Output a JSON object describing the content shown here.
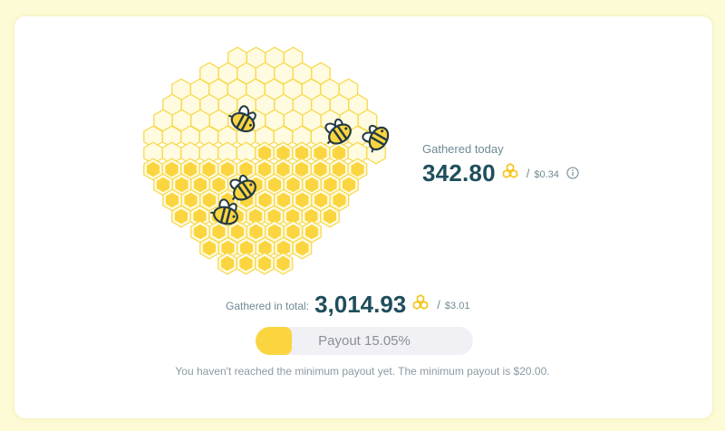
{
  "today": {
    "label": "Gathered today",
    "value": "342.80",
    "usd": "$0.34"
  },
  "total": {
    "label": "Gathered in total:",
    "value": "3,014.93",
    "usd": "$3.01"
  },
  "payout": {
    "label": "Payout 15.05%",
    "progress_percent": 15.05
  },
  "note": "You haven't reached the minimum payout yet. The minimum payout is $20.00.",
  "icons": {
    "currency": "honeycomb-coin-icon",
    "info": "info-icon",
    "bee": "bee-icon"
  },
  "colors": {
    "background": "#fdfbd6",
    "honey": "#fbd540",
    "hex_empty": "#fffbe0",
    "hex_stroke": "#f7d94c",
    "value_text": "#1f4e5c",
    "muted_text": "#6f8a93"
  }
}
